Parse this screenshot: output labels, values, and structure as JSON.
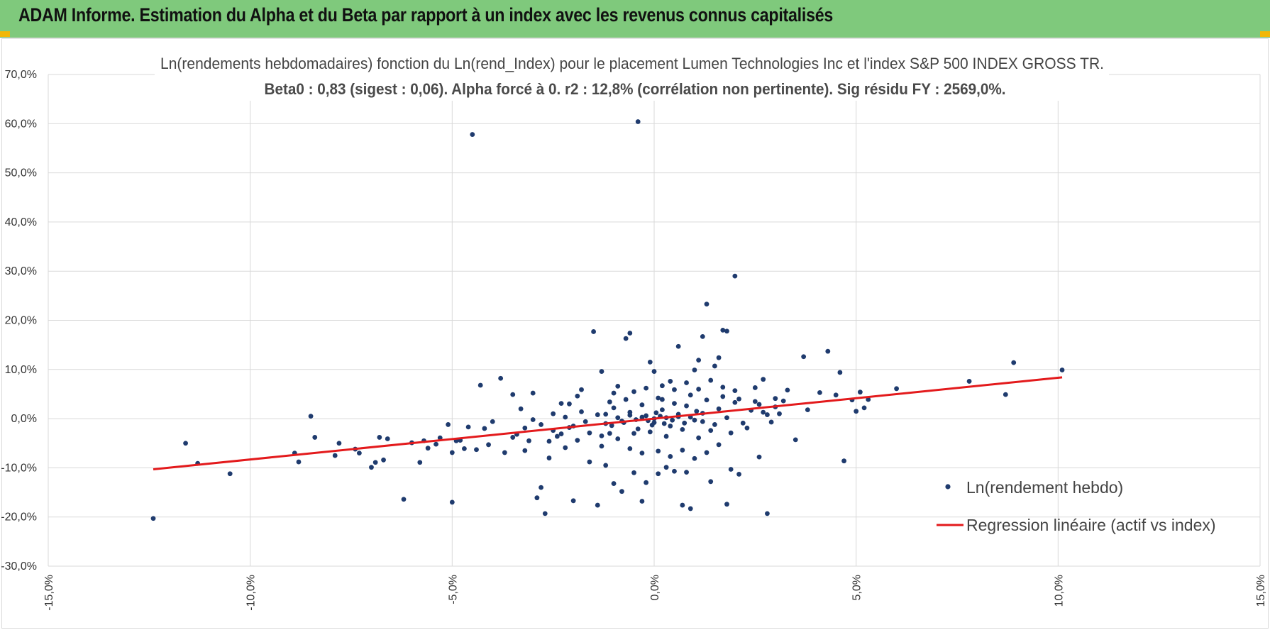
{
  "header": {
    "title": "ADAM Informe. Estimation du Alpha et du Beta par rapport à un index avec les revenus connus capitalisés",
    "background": "#7fc97c",
    "corner_color": "#f2b705"
  },
  "chart_data": {
    "type": "scatter",
    "title": "Ln(rendements hebdomadaires) fonction du Ln(rend_Index) pour le placement Lumen Technologies Inc et l'index S&P 500 INDEX GROSS TR.",
    "subtitle": "Beta0 : 0,83 (sigest : 0,06).  Alpha forcé à 0. r2 : 12,8% (corrélation non pertinente). Sig résidu FY : 2569,0%.",
    "xlabel": "",
    "ylabel": "",
    "xlim": [
      -15,
      15
    ],
    "ylim": [
      -30,
      70
    ],
    "x_ticks": [
      "-15,0%",
      "-10,0%",
      "-5,0%",
      "0,0%",
      "5,0%",
      "10,0%",
      "15,0%"
    ],
    "y_ticks": [
      "-30,0%",
      "-20,0%",
      "-10,0%",
      "0,0%",
      "10,0%",
      "20,0%",
      "30,0%",
      "40,0%",
      "50,0%",
      "60,0%",
      "70,0%"
    ],
    "grid": true,
    "legend_position": "bottom-right",
    "series": [
      {
        "name": "Ln(rendement hebdo)",
        "kind": "scatter",
        "color": "#1f3b6e",
        "points": [
          [
            -12.4,
            -20.3
          ],
          [
            -11.6,
            -5.0
          ],
          [
            -11.3,
            -9.1
          ],
          [
            -10.5,
            -11.2
          ],
          [
            -8.5,
            0.5
          ],
          [
            -8.9,
            -7.0
          ],
          [
            -8.8,
            -8.8
          ],
          [
            -8.4,
            -3.8
          ],
          [
            -7.9,
            -7.5
          ],
          [
            -7.8,
            -5.0
          ],
          [
            -7.4,
            -6.2
          ],
          [
            -7.3,
            -7.0
          ],
          [
            -7.0,
            -9.9
          ],
          [
            -6.9,
            -8.9
          ],
          [
            -6.8,
            -3.8
          ],
          [
            -6.7,
            -8.4
          ],
          [
            -6.6,
            -4.1
          ],
          [
            -6.2,
            -16.4
          ],
          [
            -6.0,
            -4.9
          ],
          [
            -5.8,
            -8.9
          ],
          [
            -5.7,
            -4.5
          ],
          [
            -5.6,
            -6.0
          ],
          [
            -5.4,
            -5.2
          ],
          [
            -5.3,
            -3.9
          ],
          [
            -5.1,
            -1.2
          ],
          [
            -5.0,
            -6.9
          ],
          [
            -4.9,
            -4.5
          ],
          [
            -4.8,
            -4.4
          ],
          [
            -4.7,
            -6.1
          ],
          [
            -4.6,
            -1.7
          ],
          [
            -4.5,
            57.8
          ],
          [
            -4.4,
            -6.3
          ],
          [
            -4.3,
            6.8
          ],
          [
            -4.2,
            -2.0
          ],
          [
            -4.1,
            -5.3
          ],
          [
            -5.0,
            -17.0
          ],
          [
            -4.0,
            -0.6
          ],
          [
            -3.8,
            8.2
          ],
          [
            -3.7,
            -6.9
          ],
          [
            -3.5,
            4.9
          ],
          [
            -3.4,
            -3.2
          ],
          [
            -3.3,
            2.0
          ],
          [
            -3.2,
            -6.5
          ],
          [
            -3.1,
            -4.5
          ],
          [
            -3.0,
            5.2
          ],
          [
            -2.9,
            -16.1
          ],
          [
            -2.8,
            -14.0
          ],
          [
            -2.7,
            -19.3
          ],
          [
            -2.6,
            -8.0
          ],
          [
            -2.5,
            1.0
          ],
          [
            -2.4,
            -3.6
          ],
          [
            -2.3,
            3.1
          ],
          [
            -2.2,
            -5.9
          ],
          [
            -2.1,
            -1.8
          ],
          [
            -2.0,
            -16.7
          ],
          [
            -1.9,
            4.6
          ],
          [
            -1.8,
            5.9
          ],
          [
            -1.6,
            -8.8
          ],
          [
            -1.5,
            17.7
          ],
          [
            -1.4,
            -17.6
          ],
          [
            -1.3,
            9.6
          ],
          [
            -1.2,
            -9.5
          ],
          [
            -1.1,
            -3.0
          ],
          [
            -1.0,
            -13.2
          ],
          [
            -0.9,
            6.6
          ],
          [
            -0.8,
            -14.8
          ],
          [
            -0.7,
            16.3
          ],
          [
            -0.6,
            17.4
          ],
          [
            -0.5,
            -11.0
          ],
          [
            -0.4,
            60.4
          ],
          [
            -0.3,
            -16.8
          ],
          [
            -0.2,
            -13.0
          ],
          [
            -0.1,
            11.5
          ],
          [
            0.0,
            9.6
          ],
          [
            0.1,
            -11.2
          ],
          [
            0.2,
            3.9
          ],
          [
            0.3,
            -9.9
          ],
          [
            0.4,
            7.6
          ],
          [
            0.5,
            -10.7
          ],
          [
            0.6,
            14.7
          ],
          [
            0.7,
            -17.6
          ],
          [
            0.8,
            -10.9
          ],
          [
            0.9,
            -18.3
          ],
          [
            1.0,
            9.9
          ],
          [
            1.1,
            11.9
          ],
          [
            1.2,
            16.7
          ],
          [
            1.3,
            23.3
          ],
          [
            1.4,
            -12.8
          ],
          [
            1.5,
            10.7
          ],
          [
            1.6,
            12.4
          ],
          [
            1.7,
            18.0
          ],
          [
            1.8,
            17.8
          ],
          [
            1.9,
            -10.3
          ],
          [
            2.0,
            29.0
          ],
          [
            2.1,
            -11.3
          ],
          [
            1.8,
            -17.4
          ],
          [
            2.5,
            6.3
          ],
          [
            2.6,
            -7.8
          ],
          [
            2.7,
            8.0
          ],
          [
            2.8,
            -19.3
          ],
          [
            3.0,
            4.1
          ],
          [
            3.3,
            5.8
          ],
          [
            3.5,
            -4.3
          ],
          [
            3.7,
            12.6
          ],
          [
            3.8,
            1.8
          ],
          [
            4.1,
            5.3
          ],
          [
            4.3,
            13.7
          ],
          [
            4.5,
            4.8
          ],
          [
            4.6,
            9.4
          ],
          [
            4.7,
            -8.6
          ],
          [
            4.9,
            3.8
          ],
          [
            5.0,
            1.5
          ],
          [
            5.1,
            5.4
          ],
          [
            5.2,
            2.2
          ],
          [
            5.3,
            3.9
          ],
          [
            6.0,
            6.1
          ],
          [
            7.8,
            7.6
          ],
          [
            8.7,
            4.9
          ],
          [
            8.9,
            11.4
          ],
          [
            10.1,
            9.9
          ],
          [
            -2.8,
            -1.2
          ],
          [
            -2.5,
            -2.4
          ],
          [
            -2.2,
            0.3
          ],
          [
            -2.0,
            -1.5
          ],
          [
            -1.8,
            1.4
          ],
          [
            -1.6,
            -2.9
          ],
          [
            -1.4,
            0.8
          ],
          [
            -1.2,
            -1.0
          ],
          [
            -1.0,
            2.2
          ],
          [
            -0.8,
            -0.5
          ],
          [
            -0.6,
            1.3
          ],
          [
            -0.4,
            -2.1
          ],
          [
            -0.2,
            0.6
          ],
          [
            0.0,
            -0.8
          ],
          [
            0.2,
            1.8
          ],
          [
            0.4,
            -1.5
          ],
          [
            0.6,
            0.4
          ],
          [
            0.8,
            2.6
          ],
          [
            1.0,
            -0.3
          ],
          [
            1.2,
            1.1
          ],
          [
            1.4,
            -2.4
          ],
          [
            1.6,
            2.0
          ],
          [
            1.8,
            0.2
          ],
          [
            2.0,
            3.3
          ],
          [
            2.2,
            -0.9
          ],
          [
            2.4,
            1.7
          ],
          [
            2.6,
            2.9
          ],
          [
            2.8,
            0.8
          ],
          [
            3.0,
            2.4
          ],
          [
            3.2,
            3.6
          ],
          [
            -3.5,
            -3.8
          ],
          [
            -3.2,
            -1.9
          ],
          [
            -3.0,
            -0.2
          ],
          [
            -2.6,
            -4.6
          ],
          [
            -2.3,
            -3.1
          ],
          [
            -1.9,
            -4.4
          ],
          [
            -1.7,
            -0.6
          ],
          [
            -1.3,
            -3.5
          ],
          [
            -1.1,
            3.4
          ],
          [
            -0.9,
            -4.1
          ],
          [
            -0.7,
            3.9
          ],
          [
            -0.5,
            -3.0
          ],
          [
            -0.3,
            2.8
          ],
          [
            -0.1,
            -2.7
          ],
          [
            0.1,
            4.2
          ],
          [
            0.3,
            -3.6
          ],
          [
            0.5,
            3.1
          ],
          [
            0.7,
            -2.2
          ],
          [
            0.9,
            4.8
          ],
          [
            1.1,
            -3.9
          ],
          [
            1.3,
            3.8
          ],
          [
            1.5,
            -1.2
          ],
          [
            1.7,
            4.5
          ],
          [
            1.9,
            -2.9
          ],
          [
            2.1,
            4.0
          ],
          [
            2.3,
            -1.9
          ],
          [
            2.5,
            3.5
          ],
          [
            2.7,
            1.3
          ],
          [
            2.9,
            -0.7
          ],
          [
            3.1,
            1.0
          ],
          [
            -0.5,
            5.5
          ],
          [
            -0.2,
            6.2
          ],
          [
            0.2,
            6.7
          ],
          [
            0.5,
            5.9
          ],
          [
            0.8,
            7.3
          ],
          [
            1.1,
            6.0
          ],
          [
            1.4,
            7.8
          ],
          [
            1.7,
            6.4
          ],
          [
            -0.6,
            -6.1
          ],
          [
            -0.3,
            -7.0
          ],
          [
            0.1,
            -6.6
          ],
          [
            0.4,
            -7.7
          ],
          [
            0.7,
            -6.4
          ],
          [
            1.0,
            -8.1
          ],
          [
            1.3,
            -6.9
          ],
          [
            -1.0,
            5.2
          ],
          [
            -1.3,
            -5.6
          ],
          [
            1.6,
            -5.3
          ],
          [
            2.0,
            5.7
          ],
          [
            -2.1,
            3.0
          ],
          [
            0.0,
            0.0
          ],
          [
            0.15,
            0.5
          ],
          [
            -0.15,
            -0.4
          ],
          [
            0.3,
            0.2
          ],
          [
            -0.3,
            0.3
          ],
          [
            0.45,
            -0.3
          ],
          [
            -0.45,
            -0.2
          ],
          [
            0.6,
            0.9
          ],
          [
            -0.6,
            0.7
          ],
          [
            0.75,
            -0.9
          ],
          [
            -0.75,
            -0.8
          ],
          [
            0.9,
            0.3
          ],
          [
            -0.9,
            0.2
          ],
          [
            1.05,
            1.5
          ],
          [
            -1.05,
            -1.4
          ],
          [
            1.2,
            -0.6
          ],
          [
            -1.2,
            0.9
          ],
          [
            0.05,
            1.2
          ],
          [
            -0.05,
            -1.3
          ],
          [
            0.25,
            -1.0
          ]
        ]
      },
      {
        "name": "Regression linéaire (actif vs index)",
        "kind": "line",
        "color": "#e31a1c",
        "points": [
          [
            -12.4,
            -10.3
          ],
          [
            10.1,
            8.4
          ]
        ]
      }
    ]
  }
}
